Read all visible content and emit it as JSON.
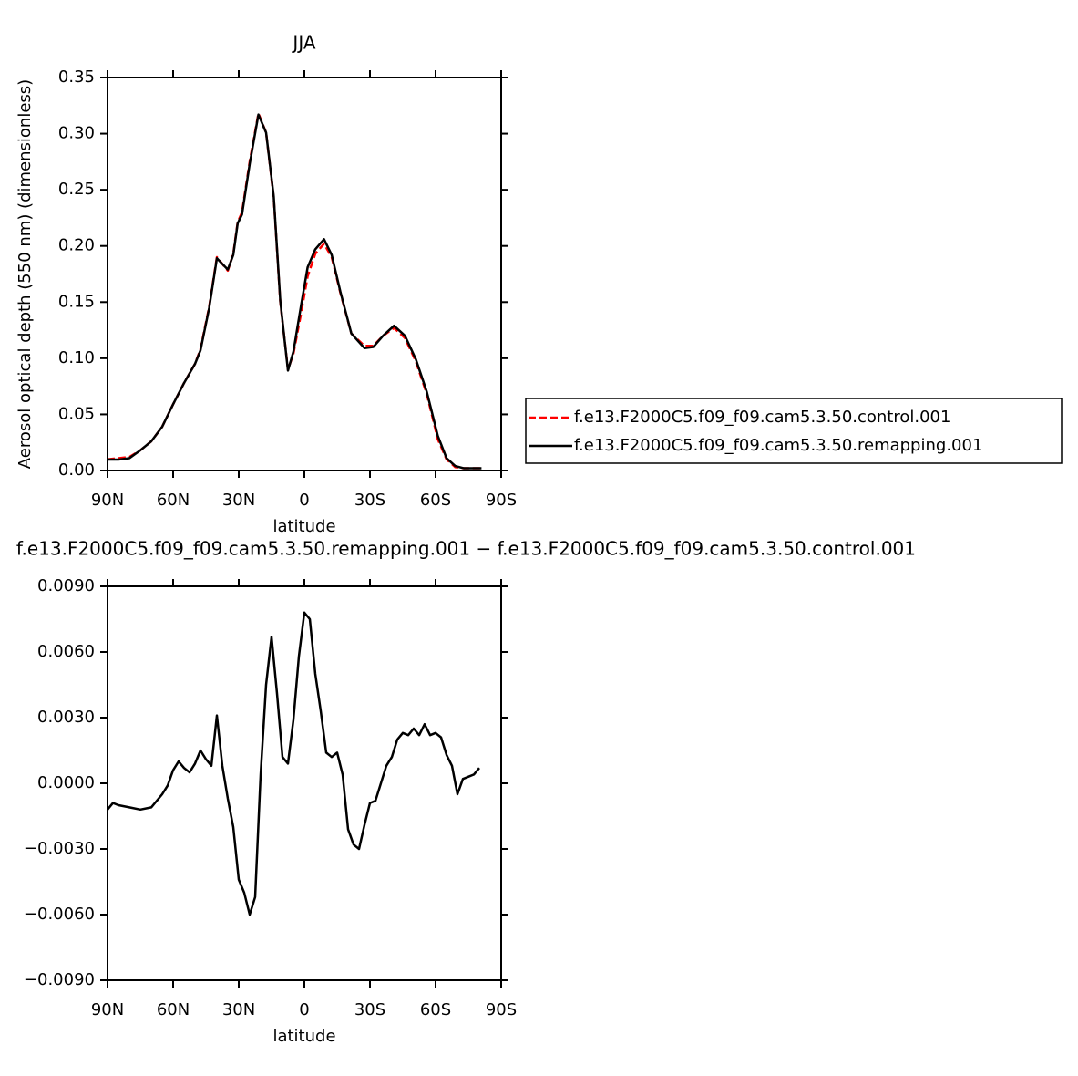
{
  "chart_data": [
    {
      "type": "line",
      "title": "JJA",
      "x_label": "latitude",
      "y_label": "Aerosol optical depth (550 nm) (dimensionless)",
      "x": [
        90,
        85,
        80,
        75,
        70,
        65,
        60,
        55,
        50,
        47.5,
        43.5,
        40,
        35,
        32.5,
        30.5,
        28.5,
        25,
        21,
        17.5,
        14,
        11,
        7.5,
        5,
        1.5,
        -1.5,
        -5,
        -9,
        -12.5,
        -16.5,
        -21.5,
        -27.5,
        -31.5,
        -36,
        -41,
        -46,
        -51,
        -56,
        -61,
        -65,
        -69,
        -73,
        -81
      ],
      "series": [
        {
          "name": "f.e13.F2000C5.f09_f09.cam5.3.50.control.001",
          "color": "#ff0000",
          "dashed": true,
          "values": [
            0.01,
            0.011,
            0.012,
            0.018,
            0.026,
            0.039,
            0.059,
            0.078,
            0.095,
            0.108,
            0.146,
            0.19,
            0.178,
            0.193,
            0.221,
            0.23,
            0.275,
            0.318,
            0.301,
            0.243,
            0.15,
            0.09,
            0.104,
            0.14,
            0.173,
            0.193,
            0.202,
            0.19,
            0.158,
            0.122,
            0.111,
            0.111,
            0.12,
            0.127,
            0.118,
            0.097,
            0.068,
            0.028,
            0.01,
            0.003,
            0.002,
            0.002
          ]
        },
        {
          "name": "f.e13.F2000C5.f09_f09.cam5.3.50.remapping.001",
          "color": "#000000",
          "dashed": false,
          "values": [
            0.0097,
            0.0097,
            0.011,
            0.018,
            0.026,
            0.039,
            0.059,
            0.078,
            0.095,
            0.107,
            0.145,
            0.189,
            0.179,
            0.192,
            0.22,
            0.228,
            0.273,
            0.317,
            0.301,
            0.244,
            0.151,
            0.089,
            0.106,
            0.147,
            0.181,
            0.197,
            0.206,
            0.192,
            0.159,
            0.122,
            0.109,
            0.11,
            0.12,
            0.129,
            0.12,
            0.099,
            0.07,
            0.031,
            0.011,
            0.004,
            0.002,
            0.002
          ]
        }
      ],
      "xlim": [
        90,
        -90
      ],
      "xticks": [
        {
          "value": 90,
          "label": "90N"
        },
        {
          "value": 60,
          "label": "60N"
        },
        {
          "value": 30,
          "label": "30N"
        },
        0,
        {
          "value": -30,
          "label": "30S"
        },
        {
          "value": -60,
          "label": "60S"
        },
        {
          "value": -90,
          "label": "90S"
        }
      ],
      "ylim": [
        0,
        0.35
      ],
      "yticks": [
        {
          "value": 0,
          "label": "0.00"
        },
        0.05,
        {
          "value": 0.1,
          "label": "0.10"
        },
        0.15,
        {
          "value": 0.2,
          "label": "0.20"
        },
        0.25,
        {
          "value": 0.3,
          "label": "0.30"
        },
        0.35
      ],
      "legend": "outside-right"
    },
    {
      "type": "line",
      "title": "f.e13.F2000C5.f09_f09.cam5.3.50.remapping.001 − f.e13.F2000C5.f09_f09.cam5.3.50.control.001",
      "x_label": "latitude",
      "x": [
        90,
        87.5,
        85,
        80,
        75,
        70,
        65,
        62.5,
        60,
        57.5,
        55,
        52.5,
        50,
        47.5,
        45,
        42.5,
        40,
        37.5,
        35,
        32.5,
        30,
        27.5,
        25,
        22.5,
        20,
        17.5,
        15,
        12.5,
        10,
        7.5,
        5,
        2.5,
        0,
        -2.5,
        -5,
        -7.5,
        -10,
        -12.5,
        -15,
        -17.5,
        -20,
        -22.5,
        -25,
        -27.5,
        -30,
        -32.5,
        -35,
        -37.5,
        -40,
        -42.5,
        -45,
        -47.5,
        -50,
        -52.5,
        -55,
        -57.5,
        -60,
        -62.5,
        -65,
        -67.5,
        -70,
        -72.5,
        -75,
        -77.5,
        -80
      ],
      "values": [
        -0.0012,
        -0.0009,
        -0.001,
        -0.0011,
        -0.0012,
        -0.0011,
        -0.0005,
        -0.0001,
        0.0006,
        0.001,
        0.0007,
        0.0005,
        0.0009,
        0.0015,
        0.0011,
        0.0008,
        0.0031,
        0.0008,
        -0.0007,
        -0.002,
        -0.0044,
        -0.005,
        -0.006,
        -0.0052,
        0.0004,
        0.0045,
        0.0067,
        0.0041,
        0.0012,
        0.0009,
        0.0029,
        0.0058,
        0.0078,
        0.0075,
        0.005,
        0.0033,
        0.0014,
        0.0012,
        0.0014,
        0.0004,
        -0.0021,
        -0.0028,
        -0.003,
        -0.0019,
        -0.0009,
        -0.0008,
        0.0,
        0.0008,
        0.0012,
        0.002,
        0.0023,
        0.0022,
        0.0025,
        0.0022,
        0.0027,
        0.0022,
        0.0023,
        0.0021,
        0.0013,
        0.0008,
        -0.0005,
        0.0002,
        0.0003,
        0.0004,
        0.0007
      ],
      "color": "#000000",
      "xlim": [
        90,
        -90
      ],
      "xticks": [
        {
          "value": 90,
          "label": "90N"
        },
        {
          "value": 60,
          "label": "60N"
        },
        {
          "value": 30,
          "label": "30N"
        },
        0,
        {
          "value": -30,
          "label": "30S"
        },
        {
          "value": -60,
          "label": "60S"
        },
        {
          "value": -90,
          "label": "90S"
        }
      ],
      "ylim": [
        -0.009,
        0.009
      ],
      "yticks": [
        {
          "value": -0.009,
          "label": "−0.0090"
        },
        {
          "value": -0.006,
          "label": "−0.0060"
        },
        {
          "value": -0.003,
          "label": "−0.0030"
        },
        {
          "value": 0,
          "label": "0.0000"
        },
        {
          "value": 0.003,
          "label": "0.0030"
        },
        {
          "value": 0.006,
          "label": "0.0060"
        },
        {
          "value": 0.009,
          "label": "0.0090"
        }
      ]
    }
  ]
}
